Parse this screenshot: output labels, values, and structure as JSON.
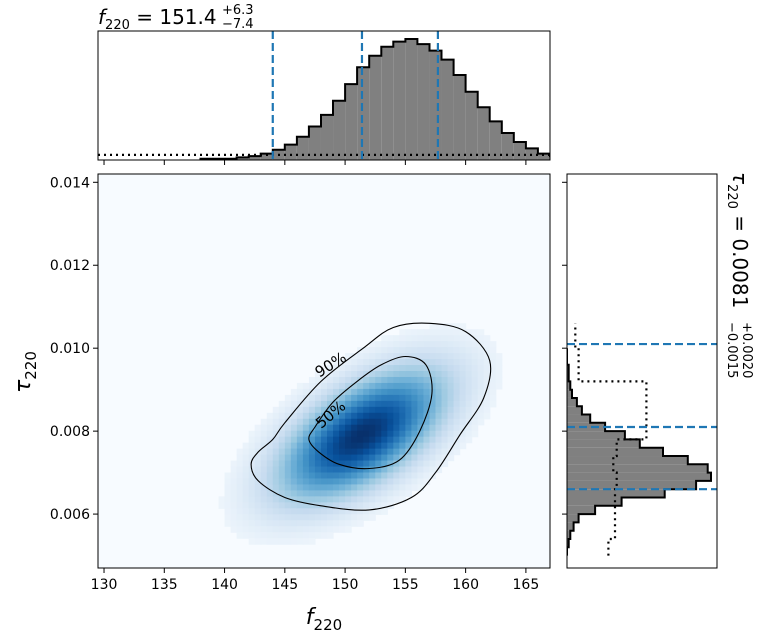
{
  "chart_data": [
    {
      "type": "heatmap",
      "panel": "joint-density",
      "xlabel": "f",
      "xlabel_sub": "220",
      "ylabel": "τ",
      "ylabel_sub": "220",
      "xlim": [
        129.5,
        167
      ],
      "ylim": [
        0.0047,
        0.0142
      ],
      "xticks": [
        130,
        135,
        140,
        145,
        150,
        155,
        160,
        165
      ],
      "xtick_labels": [
        "130",
        "135",
        "140",
        "145",
        "150",
        "155",
        "160",
        "165"
      ],
      "yticks": [
        0.006,
        0.008,
        0.01,
        0.012,
        0.014
      ],
      "ytick_labels": [
        "0.006",
        "0.008",
        "0.010",
        "0.012",
        "0.014"
      ],
      "colormap": "Blues",
      "peak": {
        "x": 151.4,
        "y": 0.0079
      },
      "contours": [
        {
          "label": "90%",
          "points": [
            [
              145.0,
              0.0082
            ],
            [
              148.0,
              0.0092
            ],
            [
              151.5,
              0.01
            ],
            [
              154.0,
              0.0105
            ],
            [
              157.0,
              0.0106
            ],
            [
              160.0,
              0.0104
            ],
            [
              162.0,
              0.0097
            ],
            [
              161.5,
              0.0088
            ],
            [
              159.5,
              0.0079
            ],
            [
              157.5,
              0.007
            ],
            [
              155.5,
              0.0064
            ],
            [
              152.0,
              0.0061
            ],
            [
              148.0,
              0.0062
            ],
            [
              145.0,
              0.0064
            ],
            [
              142.8,
              0.0068
            ],
            [
              142.2,
              0.0072
            ],
            [
              142.8,
              0.0075
            ],
            [
              144.0,
              0.0078
            ]
          ]
        },
        {
          "label": "50%",
          "points": [
            [
              147.5,
              0.0081
            ],
            [
              149.0,
              0.0087
            ],
            [
              151.0,
              0.0092
            ],
            [
              153.0,
              0.0096
            ],
            [
              155.0,
              0.0098
            ],
            [
              156.7,
              0.0096
            ],
            [
              157.2,
              0.0089
            ],
            [
              156.2,
              0.008
            ],
            [
              154.5,
              0.0073
            ],
            [
              152.0,
              0.0071
            ],
            [
              149.5,
              0.0072
            ],
            [
              147.8,
              0.0075
            ],
            [
              147.0,
              0.0078
            ]
          ]
        }
      ]
    },
    {
      "type": "bar",
      "panel": "marginal-f220",
      "title_symbol": "f",
      "title_sub": "220",
      "title_value": " = 151.4",
      "title_sup": "+6.3",
      "title_lower": "−7.4",
      "x_start": 138.0,
      "bin_width": 1.0,
      "values": [
        1,
        1,
        1,
        2,
        3,
        5,
        8,
        12,
        18,
        26,
        35,
        46,
        59,
        72,
        81,
        88,
        92,
        94,
        90,
        85,
        78,
        66,
        53,
        41,
        30,
        21,
        14,
        9,
        5,
        3,
        2,
        1,
        1
      ],
      "quantile_lines": [
        144.0,
        151.4,
        157.7
      ],
      "prior_level": 4
    },
    {
      "type": "bar",
      "panel": "marginal-tau220",
      "orientation": "horizontal",
      "title_symbol": "τ",
      "title_sub": "220",
      "title_value": " = 0.0081",
      "title_sup": "+0.0020",
      "title_lower": "−0.0015",
      "y_start": 0.005,
      "bin_width": 0.0002,
      "values": [
        0,
        1,
        2,
        4,
        7,
        17,
        33,
        59,
        78,
        87,
        85,
        73,
        58,
        44,
        35,
        23,
        14,
        9,
        6,
        3,
        2,
        1,
        1,
        0,
        0
      ],
      "quantile_lines": [
        0.0066,
        0.0081,
        0.0101
      ],
      "prior_steps": [
        [
          0.005,
          25
        ],
        [
          0.0054,
          29
        ],
        [
          0.0066,
          30
        ],
        [
          0.007,
          28
        ],
        [
          0.0074,
          30
        ],
        [
          0.0078,
          48
        ],
        [
          0.0092,
          7
        ],
        [
          0.01,
          5
        ]
      ]
    }
  ]
}
